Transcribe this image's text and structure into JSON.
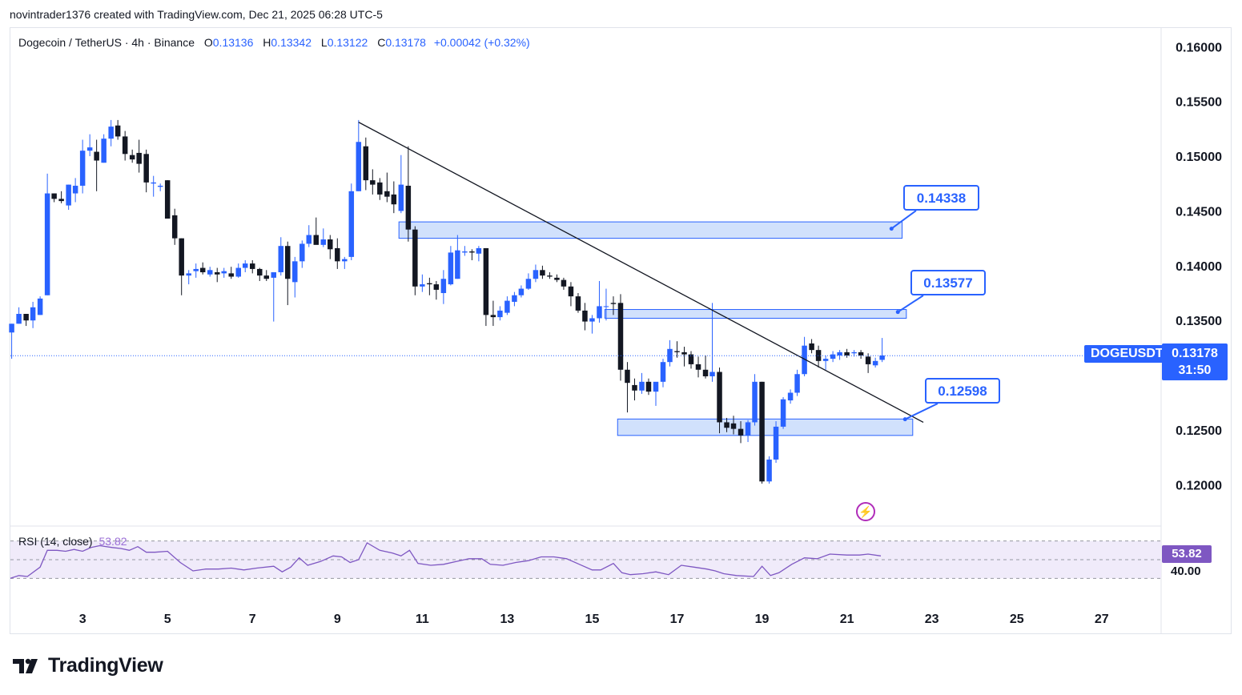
{
  "header": {
    "credit": "novintrader1376 created with TradingView.com, Dec 21, 2025 06:28 UTC-5"
  },
  "legend": {
    "symbol": "Dogecoin / TetherUS · 4h · Binance",
    "open_label": "O",
    "open": "0.13136",
    "high_label": "H",
    "high": "0.13342",
    "low_label": "L",
    "low": "0.13122",
    "close_label": "C",
    "close": "0.13178",
    "change": "+0.00042 (+0.32%)"
  },
  "rsi_legend": {
    "label": "RSI (14, close)",
    "value": "53.82"
  },
  "price_scale": {
    "symbol_tag": "DOGEUSDT",
    "last_price": "0.13178",
    "countdown": "31:50"
  },
  "rsi_scale": {
    "value_tag": "53.82",
    "level_40": "40.00"
  },
  "callouts": [
    {
      "label": "0.14338"
    },
    {
      "label": "0.13577"
    },
    {
      "label": "0.12598"
    }
  ],
  "icons": {
    "event": "lightning-icon",
    "logo": "tradingview-logo"
  },
  "colors": {
    "up": "#2962ff",
    "down": "#131722",
    "zone_fill": "#c9dcfb",
    "zone_border": "#2962ff",
    "rsi_line": "#7e57c2",
    "rsi_band": "#f0ebfa"
  },
  "brand": {
    "name": "TradingView"
  },
  "chart_data": [
    {
      "type": "candlestick",
      "x_tick_labels": [
        "3",
        "5",
        "7",
        "9",
        "11",
        "13",
        "15",
        "17",
        "19",
        "21",
        "23",
        "25",
        "27"
      ],
      "x_ticks": [
        3,
        5,
        7,
        9,
        11,
        13,
        15,
        17,
        19,
        21,
        23,
        25,
        27
      ],
      "x_range": [
        1.3,
        28.4
      ],
      "y_tick_labels": [
        "0.16000",
        "0.15500",
        "0.15000",
        "0.14500",
        "0.14000",
        "0.13500",
        "0.13000",
        "0.12500",
        "0.12000"
      ],
      "y_ticks": [
        0.16,
        0.155,
        0.15,
        0.145,
        0.14,
        0.135,
        0.13,
        0.125,
        0.12
      ],
      "y_range": [
        0.1163,
        0.1617
      ],
      "last_price": 0.13178,
      "candles": [
        [
          1.33,
          0.1339,
          0.1347,
          0.1315,
          0.1347
        ],
        [
          1.5,
          0.1347,
          0.1362,
          0.1347,
          0.1356
        ],
        [
          1.67,
          0.1356,
          0.1356,
          0.1345,
          0.135
        ],
        [
          1.83,
          0.135,
          0.1367,
          0.1343,
          0.1362
        ],
        [
          2.0,
          0.1355,
          0.1372,
          0.1355,
          0.137
        ],
        [
          2.17,
          0.1373,
          0.1484,
          0.1373,
          0.1466
        ],
        [
          2.33,
          0.1466,
          0.1466,
          0.1458,
          0.1461
        ],
        [
          2.5,
          0.1461,
          0.1468,
          0.1457,
          0.1459
        ],
        [
          2.67,
          0.1455,
          0.1474,
          0.1451,
          0.1474
        ],
        [
          2.83,
          0.1466,
          0.148,
          0.1458,
          0.1473
        ],
        [
          3.0,
          0.1473,
          0.1515,
          0.1466,
          0.1505
        ],
        [
          3.17,
          0.1505,
          0.152,
          0.15,
          0.1508
        ],
        [
          3.33,
          0.1504,
          0.1515,
          0.1468,
          0.1496
        ],
        [
          3.5,
          0.1494,
          0.152,
          0.1494,
          0.1516
        ],
        [
          3.67,
          0.1516,
          0.1533,
          0.1509,
          0.1527
        ],
        [
          3.83,
          0.1528,
          0.1533,
          0.1515,
          0.1518
        ],
        [
          4.0,
          0.1518,
          0.1523,
          0.1496,
          0.1502
        ],
        [
          4.17,
          0.1501,
          0.1506,
          0.1494,
          0.1497
        ],
        [
          4.33,
          0.1503,
          0.1515,
          0.1485,
          0.1493
        ],
        [
          4.5,
          0.1502,
          0.1506,
          0.1467,
          0.1476
        ],
        [
          4.67,
          0.1475,
          0.1482,
          0.1463,
          0.1476
        ],
        [
          4.83,
          0.1472,
          0.1475,
          0.1468,
          0.1473
        ],
        [
          5.0,
          0.1478,
          0.1478,
          0.1443,
          0.1443
        ],
        [
          5.17,
          0.1446,
          0.1452,
          0.1419,
          0.1425
        ],
        [
          5.33,
          0.1425,
          0.1425,
          0.1373,
          0.1391
        ],
        [
          5.5,
          0.1391,
          0.1396,
          0.1383,
          0.1393
        ],
        [
          5.67,
          0.1395,
          0.1402,
          0.1389,
          0.1397
        ],
        [
          5.83,
          0.1398,
          0.1403,
          0.1392,
          0.1394
        ],
        [
          6.0,
          0.1392,
          0.1399,
          0.139,
          0.1396
        ],
        [
          6.17,
          0.1394,
          0.1398,
          0.1385,
          0.1392
        ],
        [
          6.33,
          0.1393,
          0.1398,
          0.1389,
          0.1395
        ],
        [
          6.5,
          0.1393,
          0.1399,
          0.1388,
          0.139
        ],
        [
          6.67,
          0.139,
          0.1402,
          0.1389,
          0.1398
        ],
        [
          6.83,
          0.1398,
          0.1405,
          0.1394,
          0.1402
        ],
        [
          7.0,
          0.1402,
          0.1405,
          0.1393,
          0.1397
        ],
        [
          7.17,
          0.1397,
          0.1398,
          0.1386,
          0.1391
        ],
        [
          7.33,
          0.1391,
          0.1396,
          0.1386,
          0.1388
        ],
        [
          7.5,
          0.1389,
          0.1393,
          0.1349,
          0.1394
        ],
        [
          7.67,
          0.1394,
          0.1426,
          0.1391,
          0.1418
        ],
        [
          7.83,
          0.1418,
          0.1422,
          0.1364,
          0.1388
        ],
        [
          8.0,
          0.1385,
          0.1408,
          0.1371,
          0.1404
        ],
        [
          8.17,
          0.1404,
          0.1423,
          0.1398,
          0.142
        ],
        [
          8.33,
          0.142,
          0.1437,
          0.1417,
          0.1428
        ],
        [
          8.5,
          0.1428,
          0.1444,
          0.1421,
          0.1419
        ],
        [
          8.67,
          0.1419,
          0.1434,
          0.1417,
          0.1424
        ],
        [
          8.83,
          0.1424,
          0.1428,
          0.1406,
          0.1415
        ],
        [
          9.0,
          0.1416,
          0.1425,
          0.1397,
          0.1404
        ],
        [
          9.17,
          0.1404,
          0.1408,
          0.1397,
          0.1406
        ],
        [
          9.33,
          0.1408,
          0.1475,
          0.1405,
          0.1468
        ],
        [
          9.5,
          0.1468,
          0.1533,
          0.1468,
          0.1513
        ],
        [
          9.67,
          0.1509,
          0.1517,
          0.1469,
          0.1478
        ],
        [
          9.83,
          0.1478,
          0.1488,
          0.1465,
          0.1474
        ],
        [
          10.0,
          0.1476,
          0.148,
          0.146,
          0.1465
        ],
        [
          10.17,
          0.1468,
          0.1485,
          0.1458,
          0.1463
        ],
        [
          10.33,
          0.1465,
          0.1477,
          0.1448,
          0.1456
        ],
        [
          10.5,
          0.145,
          0.1501,
          0.1448,
          0.1474
        ],
        [
          10.67,
          0.1473,
          0.1509,
          0.1422,
          0.1433
        ],
        [
          10.83,
          0.1433,
          0.1436,
          0.1373,
          0.1381
        ],
        [
          11.0,
          0.1381,
          0.1392,
          0.1376,
          0.1383
        ],
        [
          11.17,
          0.1384,
          0.1389,
          0.1373,
          0.1383
        ],
        [
          11.33,
          0.1383,
          0.1386,
          0.1369,
          0.1378
        ],
        [
          11.5,
          0.1375,
          0.1396,
          0.1365,
          0.1388
        ],
        [
          11.67,
          0.1383,
          0.1418,
          0.1382,
          0.1412
        ],
        [
          11.83,
          0.1388,
          0.1428,
          0.1388,
          0.1414
        ],
        [
          12.0,
          0.1412,
          0.1418,
          0.1409,
          0.1413
        ],
        [
          12.17,
          0.1413,
          0.1415,
          0.1405,
          0.1412
        ],
        [
          12.33,
          0.1411,
          0.1418,
          0.1404,
          0.1416
        ],
        [
          12.5,
          0.1416,
          0.1416,
          0.1345,
          0.1355
        ],
        [
          12.67,
          0.1355,
          0.1368,
          0.1345,
          0.1353
        ],
        [
          12.83,
          0.1353,
          0.1363,
          0.135,
          0.1359
        ],
        [
          13.0,
          0.1357,
          0.1372,
          0.1355,
          0.1368
        ],
        [
          13.17,
          0.1367,
          0.1376,
          0.1363,
          0.1373
        ],
        [
          13.33,
          0.1373,
          0.1382,
          0.1371,
          0.1379
        ],
        [
          13.5,
          0.1379,
          0.1393,
          0.1378,
          0.1388
        ],
        [
          13.67,
          0.1388,
          0.1401,
          0.1385,
          0.1396
        ],
        [
          13.83,
          0.1396,
          0.14,
          0.1388,
          0.1391
        ],
        [
          14.0,
          0.1391,
          0.1394,
          0.1388,
          0.139
        ],
        [
          14.17,
          0.1389,
          0.1392,
          0.1385,
          0.1387
        ],
        [
          14.33,
          0.1387,
          0.1389,
          0.1378,
          0.1381
        ],
        [
          14.5,
          0.1381,
          0.1385,
          0.1363,
          0.1372
        ],
        [
          14.67,
          0.1372,
          0.1375,
          0.1357,
          0.1359
        ],
        [
          14.83,
          0.1359,
          0.1366,
          0.1341,
          0.1349
        ],
        [
          15.0,
          0.1349,
          0.1355,
          0.1338,
          0.1352
        ],
        [
          15.17,
          0.1352,
          0.1386,
          0.1348,
          0.1363
        ],
        [
          15.33,
          0.1363,
          0.1379,
          0.135,
          0.1363
        ],
        [
          15.5,
          0.1366,
          0.1372,
          0.1355,
          0.1365
        ],
        [
          15.67,
          0.1366,
          0.1374,
          0.1295,
          0.1305
        ],
        [
          15.83,
          0.1305,
          0.1312,
          0.1266,
          0.1293
        ],
        [
          16.0,
          0.1291,
          0.1297,
          0.1277,
          0.1286
        ],
        [
          16.17,
          0.1286,
          0.1302,
          0.1283,
          0.1294
        ],
        [
          16.33,
          0.1294,
          0.1297,
          0.1282,
          0.1285
        ],
        [
          16.5,
          0.1285,
          0.1291,
          0.1272,
          0.1294
        ],
        [
          16.67,
          0.1294,
          0.1315,
          0.1289,
          0.1312
        ],
        [
          16.83,
          0.1312,
          0.1332,
          0.1308,
          0.1324
        ],
        [
          17.0,
          0.1322,
          0.1331,
          0.1316,
          0.1321
        ],
        [
          17.17,
          0.1321,
          0.1326,
          0.1308,
          0.1319
        ],
        [
          17.33,
          0.1319,
          0.1322,
          0.1306,
          0.131
        ],
        [
          17.5,
          0.131,
          0.1317,
          0.1298,
          0.1305
        ],
        [
          17.67,
          0.1305,
          0.1318,
          0.1297,
          0.1299
        ],
        [
          17.83,
          0.1299,
          0.1366,
          0.1294,
          0.1303
        ],
        [
          18.0,
          0.1303,
          0.1307,
          0.1247,
          0.1257
        ],
        [
          18.17,
          0.1257,
          0.1261,
          0.1248,
          0.1252
        ],
        [
          18.33,
          0.1256,
          0.1263,
          0.1246,
          0.1251
        ],
        [
          18.5,
          0.1251,
          0.1258,
          0.1238,
          0.1245
        ],
        [
          18.67,
          0.1245,
          0.1259,
          0.1239,
          0.1257
        ],
        [
          18.83,
          0.1257,
          0.1301,
          0.1254,
          0.1294
        ],
        [
          19.0,
          0.1294,
          0.1294,
          0.1201,
          0.1203
        ],
        [
          19.17,
          0.1203,
          0.1226,
          0.1201,
          0.1223
        ],
        [
          19.33,
          0.1223,
          0.1258,
          0.122,
          0.1253
        ],
        [
          19.5,
          0.1253,
          0.128,
          0.1251,
          0.1278
        ],
        [
          19.67,
          0.1277,
          0.1287,
          0.1274,
          0.1284
        ],
        [
          19.83,
          0.1284,
          0.1305,
          0.1281,
          0.1301
        ],
        [
          20.0,
          0.1301,
          0.1335,
          0.1299,
          0.1327
        ],
        [
          20.17,
          0.1329,
          0.1333,
          0.132,
          0.1323
        ],
        [
          20.33,
          0.1323,
          0.1327,
          0.1307,
          0.1313
        ],
        [
          20.5,
          0.1313,
          0.1318,
          0.1305,
          0.1315
        ],
        [
          20.67,
          0.1315,
          0.1322,
          0.1312,
          0.1319
        ],
        [
          20.83,
          0.1318,
          0.1323,
          0.1314,
          0.1321
        ],
        [
          21.0,
          0.1321,
          0.1324,
          0.1316,
          0.1318
        ],
        [
          21.17,
          0.132,
          0.1323,
          0.1317,
          0.1321
        ],
        [
          21.33,
          0.1321,
          0.1323,
          0.1315,
          0.1318
        ],
        [
          21.5,
          0.1317,
          0.132,
          0.1302,
          0.131
        ],
        [
          21.67,
          0.1309,
          0.1316,
          0.1307,
          0.1313
        ],
        [
          21.83,
          0.1314,
          0.1334,
          0.1312,
          0.1318
        ]
      ],
      "zones": [
        {
          "x0": 10.45,
          "x1": 22.3,
          "y0": 0.1425,
          "y1": 0.144
        },
        {
          "x0": 15.3,
          "x1": 22.4,
          "y0": 0.1352,
          "y1": 0.136
        },
        {
          "x0": 15.6,
          "x1": 22.55,
          "y0": 0.1245,
          "y1": 0.126
        }
      ],
      "trendline": {
        "x0": 9.5,
        "y0": 0.1531,
        "x1": 22.8,
        "y1": 0.1257
      },
      "callout_anchors": [
        {
          "x": 22.05,
          "y": 0.14338
        },
        {
          "x": 22.2,
          "y": 0.13577
        },
        {
          "x": 22.37,
          "y": 0.12598
        }
      ]
    },
    {
      "type": "line",
      "title": "RSI (14, close)",
      "y_range": [
        20,
        80
      ],
      "band": [
        30,
        70
      ],
      "levels": [
        70,
        50,
        30
      ],
      "level_tick_labels": [
        "40.00"
      ],
      "last_value": 53.82,
      "x": [
        1.3,
        1.5,
        1.7,
        2.0,
        2.17,
        2.4,
        2.6,
        2.8,
        3.0,
        3.2,
        3.4,
        3.7,
        3.9,
        4.1,
        4.3,
        4.5,
        4.7,
        5.0,
        5.3,
        5.6,
        5.9,
        6.2,
        6.5,
        6.8,
        7.1,
        7.5,
        7.7,
        7.9,
        8.1,
        8.3,
        8.6,
        8.9,
        9.1,
        9.3,
        9.5,
        9.7,
        10.0,
        10.3,
        10.5,
        10.7,
        10.9,
        11.2,
        11.5,
        11.8,
        12.1,
        12.4,
        12.6,
        12.9,
        13.2,
        13.5,
        13.8,
        14.1,
        14.4,
        14.7,
        15.0,
        15.2,
        15.5,
        15.7,
        15.9,
        16.2,
        16.5,
        16.8,
        17.1,
        17.4,
        17.7,
        17.9,
        18.1,
        18.4,
        18.8,
        19.0,
        19.2,
        19.4,
        19.7,
        20.0,
        20.3,
        20.6,
        21.0,
        21.3,
        21.5,
        21.8
      ],
      "values": [
        30,
        33,
        32,
        42,
        60,
        60,
        59,
        61,
        59,
        63,
        65,
        63,
        62,
        60,
        64,
        58,
        58,
        59,
        47,
        38,
        40,
        40,
        41,
        39,
        41,
        43,
        37,
        42,
        52,
        44,
        48,
        54,
        53,
        47,
        50,
        68,
        60,
        57,
        54,
        60,
        46,
        44,
        45,
        48,
        51,
        51,
        45,
        44,
        47,
        49,
        53,
        53,
        51,
        45,
        39,
        39,
        46,
        36,
        34,
        35,
        37,
        34,
        44,
        42,
        40,
        38,
        35,
        33,
        32,
        43,
        33,
        36,
        45,
        52,
        51,
        56,
        55,
        55,
        56,
        54
      ]
    }
  ]
}
